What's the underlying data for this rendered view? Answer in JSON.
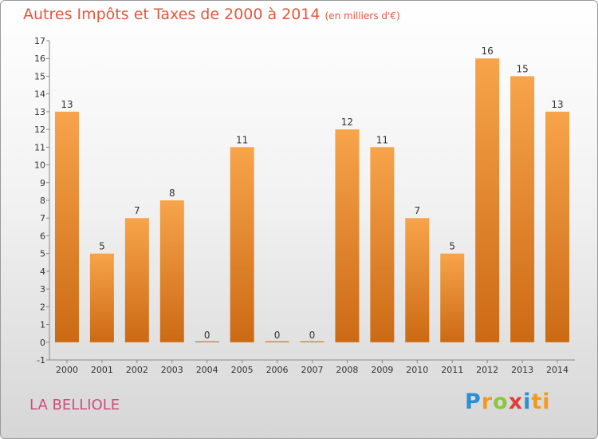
{
  "chart_data": {
    "type": "bar",
    "title": "Autres Impôts et Taxes de 2000 à 2014",
    "subtitle": "(en milliers d'€)",
    "categories": [
      "2000",
      "2001",
      "2002",
      "2003",
      "2004",
      "2005",
      "2006",
      "2007",
      "2008",
      "2009",
      "2010",
      "2011",
      "2012",
      "2013",
      "2014"
    ],
    "values": [
      13,
      5,
      7,
      8,
      0,
      11,
      0,
      0,
      12,
      11,
      7,
      5,
      16,
      15,
      13
    ],
    "ylim": [
      -1,
      17
    ],
    "yticks": [
      -1,
      0,
      1,
      2,
      3,
      4,
      5,
      6,
      7,
      8,
      9,
      10,
      11,
      12,
      13,
      14,
      15,
      16,
      17
    ],
    "xlabel": "",
    "ylabel": "",
    "grid": false,
    "bar_color": "#f0902e"
  },
  "commune": "LA BELLIOLE",
  "logo": [
    "P",
    "r",
    "o",
    "x",
    "i",
    "ti"
  ]
}
